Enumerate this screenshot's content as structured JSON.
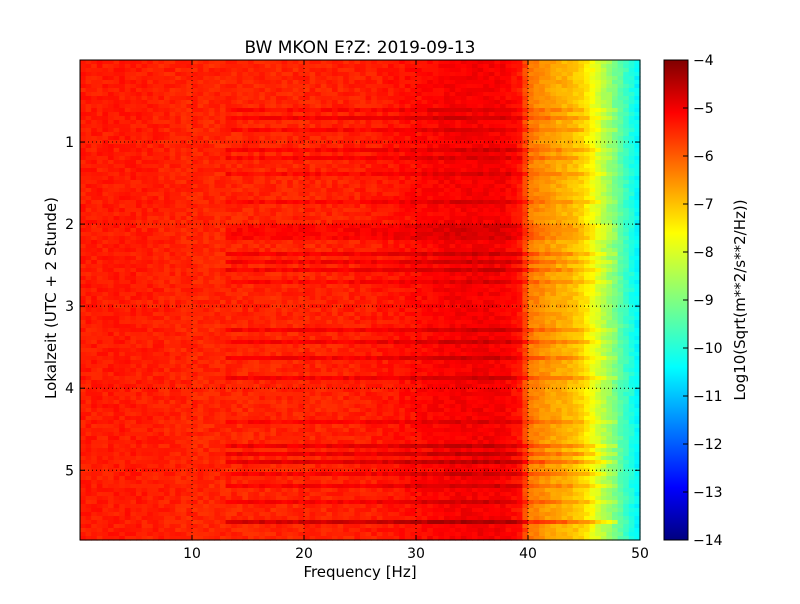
{
  "chart_data": {
    "type": "heatmap",
    "title": "BW MKON E?Z: 2019-09-13",
    "xlabel": "Frequency [Hz]",
    "ylabel": "Lokalzeit (UTC + 2 Stunde)",
    "xlim": [
      0,
      50
    ],
    "ylim": [
      5.85,
      0
    ],
    "x_ticks": [
      10,
      20,
      30,
      40,
      50
    ],
    "x_tick_labels": [
      "10",
      "20",
      "30",
      "40",
      "50"
    ],
    "y_ticks": [
      1,
      2,
      3,
      4,
      5
    ],
    "y_tick_labels": [
      "1",
      "2",
      "3",
      "4",
      "5"
    ],
    "grid": true,
    "grid_style": "dotted",
    "colormap": "jet",
    "colorbar": {
      "label": "Log10(Sqrt(m**2/s**2/Hz))",
      "range": [
        -14,
        -4
      ],
      "ticks": [
        -4,
        -5,
        -6,
        -7,
        -8,
        -9,
        -10,
        -11,
        -12,
        -13,
        -14
      ],
      "tick_labels": [
        "−4",
        "−5",
        "−6",
        "−7",
        "−8",
        "−9",
        "−10",
        "−11",
        "−12",
        "−13",
        "−14"
      ]
    },
    "frequency_profile": {
      "frequency_hz": [
        0,
        5,
        10,
        15,
        20,
        25,
        28,
        30,
        33,
        36,
        38,
        39.5,
        40,
        42,
        44,
        45,
        46,
        47,
        48,
        49,
        50
      ],
      "log10_amplitude": [
        -5.5,
        -5.5,
        -5.6,
        -5.6,
        -5.6,
        -5.55,
        -5.45,
        -5.35,
        -5.2,
        -5.15,
        -5.2,
        -5.5,
        -6.4,
        -6.8,
        -7.1,
        -7.4,
        -8.0,
        -8.6,
        -9.2,
        -9.8,
        -10.4
      ]
    },
    "time_bands": {
      "time_h": [
        0.6,
        0.72,
        0.85,
        1.08,
        1.2,
        1.4,
        1.72,
        2.05,
        2.15,
        2.35,
        2.45,
        2.55,
        2.7,
        3.3,
        3.45,
        3.65,
        3.88,
        4.4,
        4.7,
        4.8,
        4.9,
        5.05,
        5.2,
        5.4,
        5.62
      ],
      "log10_offset": [
        0.3,
        0.4,
        0.3,
        0.35,
        0.3,
        0.3,
        0.3,
        0.3,
        0.3,
        0.4,
        0.4,
        0.4,
        0.3,
        0.4,
        0.4,
        0.4,
        0.4,
        0.3,
        0.5,
        0.5,
        0.6,
        0.4,
        0.4,
        0.4,
        0.8
      ]
    }
  }
}
